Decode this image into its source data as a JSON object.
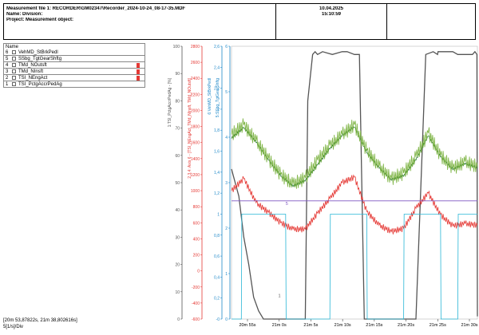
{
  "header": {
    "measurement_file": "Measurement file 1: RECORDER\\GM02347\\Recorder_2024-10-24_08-17-35.MDF",
    "name_division": "Name:     Division:",
    "project_object": "Project:     Measurement object:",
    "date": "10.04.2025",
    "time": "15:10:59"
  },
  "legend": {
    "title": "Name",
    "items": [
      {
        "num": "6",
        "name": "VehMD_StBrkPedl",
        "mark_color": ""
      },
      {
        "num": "5",
        "name": "SSbg_TgtGearShftg",
        "mark_color": ""
      },
      {
        "num": "4",
        "name": "TMd_NOutsft",
        "mark_color": "#e53935"
      },
      {
        "num": "3",
        "name": "TMd_NInsft",
        "mark_color": "#e53935"
      },
      {
        "num": "2",
        "name": "TSI_NEngAct",
        "mark_color": "#e53935"
      },
      {
        "num": "1",
        "name": "TSI_PctgAccrPedAg",
        "mark_color": ""
      }
    ]
  },
  "status": {
    "cursor_range": "[20m 53,87822s, 21m 38,802616s]",
    "time_per_div": "5[1/s]/Div"
  },
  "chart_data": {
    "type": "line",
    "axes": [
      {
        "label": "1:TSI_PctgAccrPedAg - [%]",
        "color": "#555555",
        "ticks": [
          "0",
          "10",
          "20",
          "30",
          "40",
          "50",
          "60",
          "70",
          "80",
          "90",
          "100"
        ]
      },
      {
        "label": "2,3,4: Axis 6 - [TSI_NEngAct, TMd_NInsft, TMd_NOutsft]",
        "color": "#e53935",
        "ticks": [
          "-600",
          "-400",
          "-200",
          "0",
          "200",
          "400",
          "600",
          "800",
          "1000",
          "1200",
          "1400",
          "1600",
          "1800",
          "2000",
          "2200",
          "2400",
          "2600",
          "2800"
        ]
      },
      {
        "label": "6:VehMD_StBrkPedl",
        "color": "#1e88c8",
        "ticks": [
          "-0",
          "0,2",
          "0,4",
          "0,6",
          "0,8",
          "1",
          "1,2",
          "1,4",
          "1,6",
          "1,8",
          "2",
          "2,2",
          "2,4",
          "2,6"
        ]
      },
      {
        "label": "5:SSbg_TgtGearShftg",
        "color": "#1e88c8",
        "ticks": [
          "0",
          "1",
          "2",
          "3",
          "4",
          "5",
          "6"
        ]
      }
    ],
    "x_ticks": [
      "20m 55s",
      "21m 0s",
      "21m 5s",
      "21m 10s",
      "21m 15s",
      "21m 20s",
      "21m 25s",
      "21m 30s"
    ],
    "series": [
      {
        "id": "1",
        "color": "#555555",
        "label": "1",
        "t": [
          0,
          3,
          5,
          7,
          9,
          11,
          13,
          15,
          17,
          19,
          21,
          25,
          27,
          30,
          31,
          33,
          34,
          35,
          37,
          41,
          45,
          47,
          50,
          52,
          54,
          58,
          62,
          65,
          67,
          69,
          71,
          73,
          75,
          79,
          82,
          83.8,
          84,
          85,
          88,
          90,
          92,
          94,
          98,
          99,
          99.8,
          100
        ],
        "v": [
          55,
          45,
          30,
          20,
          8,
          3,
          0,
          0,
          0,
          0,
          0,
          0,
          0,
          0,
          80,
          97,
          98,
          97,
          98,
          97,
          98,
          98,
          97,
          97,
          0,
          0,
          0,
          0,
          0,
          0,
          0,
          0,
          0,
          97,
          98,
          97,
          98,
          98,
          98,
          98,
          97,
          97,
          97,
          98,
          97,
          1
        ]
      },
      {
        "id": "2",
        "color": "#e53935",
        "label": "",
        "t": [
          0,
          5,
          10,
          15,
          20,
          25,
          30,
          35,
          40,
          45,
          50,
          55,
          60,
          65,
          70,
          75,
          80,
          85,
          90,
          95,
          100
        ],
        "v": [
          1000,
          1150,
          850,
          730,
          600,
          520,
          520,
          720,
          900,
          1100,
          1170,
          740,
          570,
          490,
          530,
          780,
          970,
          700,
          560,
          590,
          570
        ]
      },
      {
        "id": "3",
        "color": "#2e7d32",
        "label": "",
        "t": [
          0,
          5,
          10,
          15,
          20,
          25,
          30,
          35,
          40,
          45,
          50,
          55,
          60,
          65,
          70,
          75,
          80,
          85,
          90,
          95,
          100
        ],
        "v": [
          1650,
          1780,
          1600,
          1380,
          1180,
          1050,
          1120,
          1320,
          1520,
          1680,
          1790,
          1470,
          1280,
          1130,
          1180,
          1380,
          1680,
          1420,
          1260,
          1330,
          1280
        ]
      },
      {
        "id": "4",
        "color": "#7cb342",
        "label": "",
        "t": [
          0,
          5,
          10,
          15,
          20,
          25,
          30,
          35,
          40,
          45,
          50,
          55,
          60,
          65,
          70,
          75,
          80,
          85,
          90,
          95,
          100
        ],
        "v": [
          1700,
          1820,
          1620,
          1400,
          1200,
          1080,
          1160,
          1380,
          1560,
          1700,
          1820,
          1500,
          1300,
          1150,
          1220,
          1420,
          1720,
          1440,
          1280,
          1360,
          1300
        ]
      },
      {
        "id": "5",
        "color": "#7e57c2",
        "label": "5",
        "t": [
          0,
          100
        ],
        "v": [
          2.6,
          2.6
        ]
      },
      {
        "id": "6",
        "color": "#29b6d6",
        "label": "",
        "t": [
          0,
          4,
          4.2,
          22,
          22.2,
          40,
          40.2,
          55,
          55.2,
          70,
          70.2,
          85,
          85.2,
          92,
          92.2,
          100
        ],
        "v": [
          0,
          0,
          1,
          1,
          0,
          0,
          1,
          1,
          0,
          0,
          1,
          1,
          0,
          0,
          1,
          1
        ]
      }
    ]
  }
}
